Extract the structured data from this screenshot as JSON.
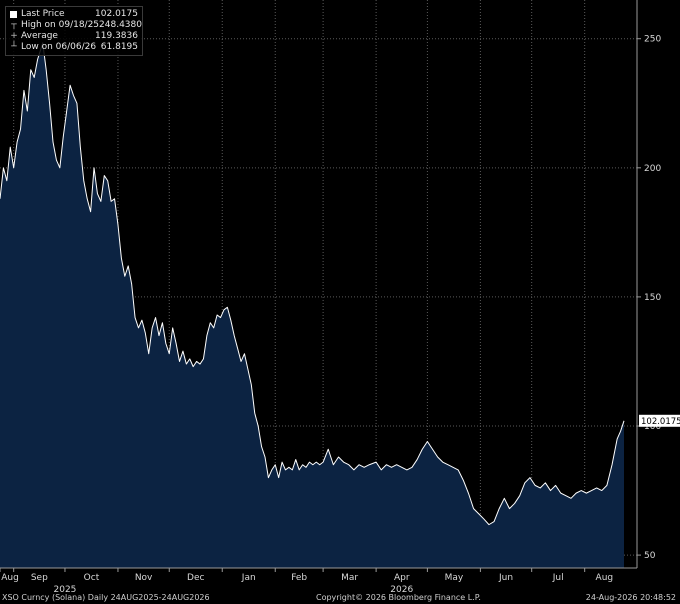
{
  "legend": {
    "last_price_label": "Last Price",
    "last_price_value": "102.0175",
    "high_label": "High on 09/18/25",
    "high_value": "248.4380",
    "average_label": "Average",
    "average_value": "119.3836",
    "low_label": "Low on 06/06/26",
    "low_value": "61.8195"
  },
  "footer": {
    "left": "XSO Curncy (Solana) Daily 24AUG2025-24AUG2026",
    "center": "Copyright© 2026 Bloomberg Finance L.P.",
    "right": "24-Aug-2026 20:48:52"
  },
  "colors": {
    "background": "#000000",
    "fill": "#0c2342",
    "line": "#ffffff",
    "grid": "#5a5a5a"
  },
  "chart_data": {
    "type": "area",
    "x_axis": {
      "month_labels": [
        "Aug",
        "Sep",
        "Oct",
        "Nov",
        "Dec",
        "Jan",
        "Feb",
        "Mar",
        "Apr",
        "May",
        "Jun",
        "Jul",
        "Aug"
      ],
      "month_dates": [
        "2025-08-24",
        "2025-09-01",
        "2025-10-01",
        "2025-11-01",
        "2025-12-01",
        "2026-01-01",
        "2026-02-01",
        "2026-03-01",
        "2026-04-01",
        "2026-05-01",
        "2026-06-01",
        "2026-07-01",
        "2026-08-01"
      ],
      "year_labels": [
        {
          "label": "2025",
          "date": "2025-10-01"
        },
        {
          "label": "2026",
          "date": "2026-04-16"
        }
      ],
      "range": [
        "2025-08-24",
        "2026-08-24"
      ]
    },
    "y_axis": {
      "ticks": [
        50,
        100,
        150,
        200,
        250
      ],
      "range": [
        45,
        265
      ],
      "position": "right"
    },
    "grid": true,
    "last_price_marker": "102.0175",
    "series": [
      {
        "points": [
          [
            "2025-08-24",
            188
          ],
          [
            "2025-08-26",
            200
          ],
          [
            "2025-08-28",
            195
          ],
          [
            "2025-08-30",
            208
          ],
          [
            "2025-09-01",
            200
          ],
          [
            "2025-09-03",
            210
          ],
          [
            "2025-09-05",
            215
          ],
          [
            "2025-09-07",
            230
          ],
          [
            "2025-09-09",
            222
          ],
          [
            "2025-09-11",
            238
          ],
          [
            "2025-09-13",
            235
          ],
          [
            "2025-09-15",
            242
          ],
          [
            "2025-09-18",
            248.4
          ],
          [
            "2025-09-20",
            238
          ],
          [
            "2025-09-22",
            225
          ],
          [
            "2025-09-24",
            210
          ],
          [
            "2025-09-26",
            203
          ],
          [
            "2025-09-28",
            200
          ],
          [
            "2025-09-30",
            212
          ],
          [
            "2025-10-02",
            222
          ],
          [
            "2025-10-04",
            232
          ],
          [
            "2025-10-06",
            228
          ],
          [
            "2025-10-08",
            225
          ],
          [
            "2025-10-10",
            208
          ],
          [
            "2025-10-12",
            195
          ],
          [
            "2025-10-14",
            188
          ],
          [
            "2025-10-16",
            183
          ],
          [
            "2025-10-18",
            200
          ],
          [
            "2025-10-20",
            190
          ],
          [
            "2025-10-22",
            187
          ],
          [
            "2025-10-24",
            197
          ],
          [
            "2025-10-26",
            195
          ],
          [
            "2025-10-28",
            187
          ],
          [
            "2025-10-30",
            188
          ],
          [
            "2025-11-01",
            178
          ],
          [
            "2025-11-03",
            165
          ],
          [
            "2025-11-05",
            158
          ],
          [
            "2025-11-07",
            162
          ],
          [
            "2025-11-09",
            155
          ],
          [
            "2025-11-11",
            142
          ],
          [
            "2025-11-13",
            138
          ],
          [
            "2025-11-15",
            141
          ],
          [
            "2025-11-17",
            136
          ],
          [
            "2025-11-19",
            128
          ],
          [
            "2025-11-21",
            138
          ],
          [
            "2025-11-23",
            142
          ],
          [
            "2025-11-25",
            135
          ],
          [
            "2025-11-27",
            140
          ],
          [
            "2025-11-29",
            132
          ],
          [
            "2025-12-01",
            128
          ],
          [
            "2025-12-03",
            138
          ],
          [
            "2025-12-05",
            132
          ],
          [
            "2025-12-07",
            125
          ],
          [
            "2025-12-09",
            129
          ],
          [
            "2025-12-11",
            124
          ],
          [
            "2025-12-13",
            126
          ],
          [
            "2025-12-15",
            123
          ],
          [
            "2025-12-17",
            125
          ],
          [
            "2025-12-19",
            124
          ],
          [
            "2025-12-21",
            126
          ],
          [
            "2025-12-23",
            135
          ],
          [
            "2025-12-25",
            140
          ],
          [
            "2025-12-27",
            138
          ],
          [
            "2025-12-29",
            143
          ],
          [
            "2025-12-31",
            142
          ],
          [
            "2026-01-02",
            145
          ],
          [
            "2026-01-04",
            146
          ],
          [
            "2026-01-06",
            141
          ],
          [
            "2026-01-08",
            135
          ],
          [
            "2026-01-10",
            130
          ],
          [
            "2026-01-12",
            125
          ],
          [
            "2026-01-14",
            128
          ],
          [
            "2026-01-16",
            122
          ],
          [
            "2026-01-18",
            116
          ],
          [
            "2026-01-20",
            105
          ],
          [
            "2026-01-22",
            100
          ],
          [
            "2026-01-24",
            92
          ],
          [
            "2026-01-26",
            88
          ],
          [
            "2026-01-28",
            80
          ],
          [
            "2026-01-30",
            83
          ],
          [
            "2026-02-01",
            85
          ],
          [
            "2026-02-03",
            80
          ],
          [
            "2026-02-05",
            86
          ],
          [
            "2026-02-07",
            83
          ],
          [
            "2026-02-09",
            84
          ],
          [
            "2026-02-11",
            83
          ],
          [
            "2026-02-13",
            87
          ],
          [
            "2026-02-15",
            83
          ],
          [
            "2026-02-17",
            85
          ],
          [
            "2026-02-19",
            84
          ],
          [
            "2026-02-21",
            86
          ],
          [
            "2026-02-23",
            85
          ],
          [
            "2026-02-25",
            86
          ],
          [
            "2026-02-27",
            85
          ],
          [
            "2026-03-01",
            86
          ],
          [
            "2026-03-04",
            91
          ],
          [
            "2026-03-07",
            85
          ],
          [
            "2026-03-10",
            88
          ],
          [
            "2026-03-13",
            86
          ],
          [
            "2026-03-16",
            85
          ],
          [
            "2026-03-19",
            83
          ],
          [
            "2026-03-22",
            85
          ],
          [
            "2026-03-25",
            84
          ],
          [
            "2026-03-28",
            85
          ],
          [
            "2026-04-01",
            86
          ],
          [
            "2026-04-04",
            83
          ],
          [
            "2026-04-07",
            85
          ],
          [
            "2026-04-10",
            84
          ],
          [
            "2026-04-13",
            85
          ],
          [
            "2026-04-16",
            84
          ],
          [
            "2026-04-19",
            83
          ],
          [
            "2026-04-22",
            84
          ],
          [
            "2026-04-25",
            87
          ],
          [
            "2026-04-28",
            91
          ],
          [
            "2026-05-01",
            94
          ],
          [
            "2026-05-04",
            91
          ],
          [
            "2026-05-07",
            88
          ],
          [
            "2026-05-10",
            86
          ],
          [
            "2026-05-13",
            85
          ],
          [
            "2026-05-16",
            84
          ],
          [
            "2026-05-19",
            83
          ],
          [
            "2026-05-22",
            79
          ],
          [
            "2026-05-25",
            74
          ],
          [
            "2026-05-28",
            68
          ],
          [
            "2026-05-31",
            66
          ],
          [
            "2026-06-03",
            64
          ],
          [
            "2026-06-06",
            61.8
          ],
          [
            "2026-06-09",
            63
          ],
          [
            "2026-06-12",
            68
          ],
          [
            "2026-06-15",
            72
          ],
          [
            "2026-06-18",
            68
          ],
          [
            "2026-06-21",
            70
          ],
          [
            "2026-06-24",
            73
          ],
          [
            "2026-06-27",
            78
          ],
          [
            "2026-06-30",
            80
          ],
          [
            "2026-07-03",
            77
          ],
          [
            "2026-07-06",
            76
          ],
          [
            "2026-07-09",
            78
          ],
          [
            "2026-07-12",
            75
          ],
          [
            "2026-07-15",
            77
          ],
          [
            "2026-07-18",
            74
          ],
          [
            "2026-07-21",
            73
          ],
          [
            "2026-07-24",
            72
          ],
          [
            "2026-07-27",
            74
          ],
          [
            "2026-07-30",
            75
          ],
          [
            "2026-08-02",
            74
          ],
          [
            "2026-08-05",
            75
          ],
          [
            "2026-08-08",
            76
          ],
          [
            "2026-08-11",
            75
          ],
          [
            "2026-08-14",
            77
          ],
          [
            "2026-08-17",
            85
          ],
          [
            "2026-08-20",
            95
          ],
          [
            "2026-08-22",
            98
          ],
          [
            "2026-08-24",
            102.0175
          ]
        ]
      }
    ]
  }
}
